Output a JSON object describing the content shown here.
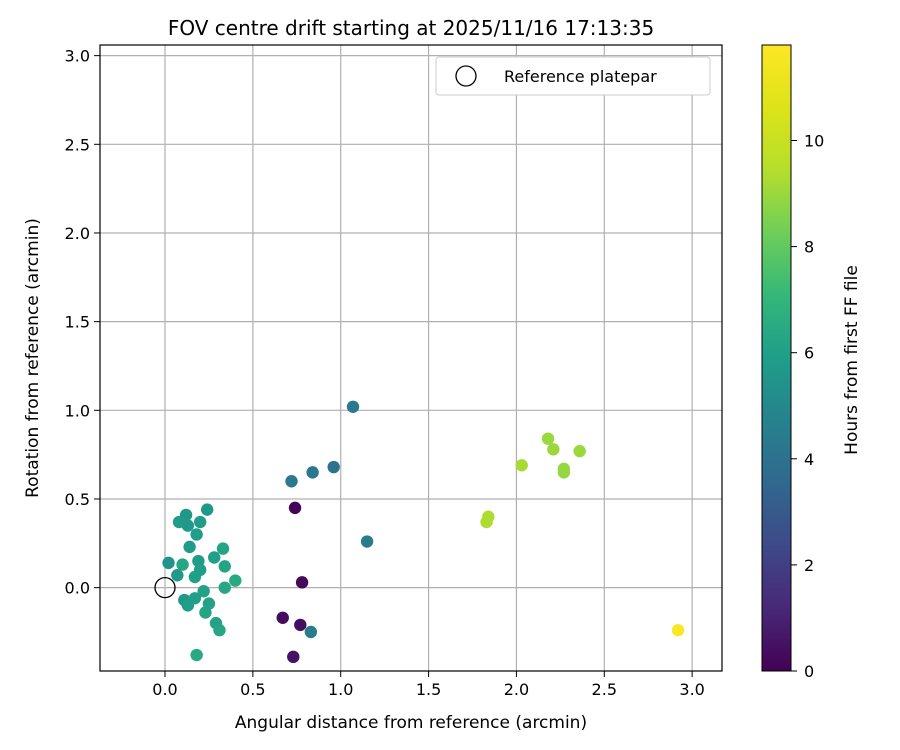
{
  "chart_data": {
    "type": "scatter",
    "title": "FOV centre drift starting at 2025/11/16 17:13:35",
    "xlabel": "Angular distance from reference (arcmin)",
    "ylabel": "Rotation from reference (arcmin)",
    "xlim": [
      -0.37,
      3.17
    ],
    "ylim": [
      -0.47,
      3.06
    ],
    "xticks": [
      0.0,
      0.5,
      1.0,
      1.5,
      2.0,
      2.5,
      3.0
    ],
    "xtick_labels": [
      "0.0",
      "0.5",
      "1.0",
      "1.5",
      "2.0",
      "2.5",
      "3.0"
    ],
    "yticks": [
      0.0,
      0.5,
      1.0,
      1.5,
      2.0,
      2.5,
      3.0
    ],
    "ytick_labels": [
      "0.0",
      "0.5",
      "1.0",
      "1.5",
      "2.0",
      "2.5",
      "3.0"
    ],
    "grid": true,
    "legend": {
      "position": "top-right",
      "entries": [
        "Reference platepar"
      ]
    },
    "reference_point": {
      "x": 0.0,
      "y": 0.0,
      "label": "Reference platepar"
    },
    "colorbar": {
      "label": "Hours from first FF file",
      "colormap": "viridis",
      "range": [
        0,
        11.8
      ],
      "ticks": [
        0,
        2,
        4,
        6,
        8,
        10
      ],
      "tick_labels": [
        "0",
        "2",
        "4",
        "6",
        "8",
        "10"
      ]
    },
    "points": [
      {
        "x": 0.74,
        "y": 0.45,
        "c": 0.1
      },
      {
        "x": 0.78,
        "y": 0.03,
        "c": 0.2
      },
      {
        "x": 0.67,
        "y": -0.17,
        "c": 0.3
      },
      {
        "x": 0.77,
        "y": -0.21,
        "c": 0.4
      },
      {
        "x": 0.73,
        "y": -0.39,
        "c": 0.5
      },
      {
        "x": 0.72,
        "y": 0.6,
        "c": 4.3
      },
      {
        "x": 0.84,
        "y": 0.65,
        "c": 4.2
      },
      {
        "x": 0.96,
        "y": 0.68,
        "c": 4.1
      },
      {
        "x": 1.07,
        "y": 1.02,
        "c": 4.3
      },
      {
        "x": 1.15,
        "y": 0.26,
        "c": 4.4
      },
      {
        "x": 0.83,
        "y": -0.25,
        "c": 4.4
      },
      {
        "x": 0.02,
        "y": 0.14,
        "c": 5.5
      },
      {
        "x": 0.07,
        "y": 0.07,
        "c": 5.7
      },
      {
        "x": 0.08,
        "y": 0.37,
        "c": 5.8
      },
      {
        "x": 0.1,
        "y": 0.13,
        "c": 6.3
      },
      {
        "x": 0.12,
        "y": 0.41,
        "c": 5.6
      },
      {
        "x": 0.11,
        "y": -0.07,
        "c": 5.6
      },
      {
        "x": 0.13,
        "y": 0.35,
        "c": 5.7
      },
      {
        "x": 0.14,
        "y": 0.23,
        "c": 5.8
      },
      {
        "x": 0.13,
        "y": -0.1,
        "c": 5.9
      },
      {
        "x": 0.17,
        "y": 0.06,
        "c": 6.0
      },
      {
        "x": 0.18,
        "y": 0.3,
        "c": 5.9
      },
      {
        "x": 0.19,
        "y": 0.15,
        "c": 5.8
      },
      {
        "x": 0.2,
        "y": 0.37,
        "c": 5.8
      },
      {
        "x": 0.2,
        "y": 0.1,
        "c": 5.9
      },
      {
        "x": 0.17,
        "y": -0.06,
        "c": 6.0
      },
      {
        "x": 0.22,
        "y": -0.02,
        "c": 6.1
      },
      {
        "x": 0.23,
        "y": -0.14,
        "c": 6.2
      },
      {
        "x": 0.24,
        "y": 0.44,
        "c": 5.7
      },
      {
        "x": 0.25,
        "y": -0.09,
        "c": 6.1
      },
      {
        "x": 0.28,
        "y": 0.17,
        "c": 6.0
      },
      {
        "x": 0.29,
        "y": -0.2,
        "c": 6.1
      },
      {
        "x": 0.31,
        "y": -0.24,
        "c": 6.3
      },
      {
        "x": 0.33,
        "y": 0.22,
        "c": 6.2
      },
      {
        "x": 0.34,
        "y": 0.12,
        "c": 6.2
      },
      {
        "x": 0.34,
        "y": 0.0,
        "c": 6.3
      },
      {
        "x": 0.4,
        "y": 0.04,
        "c": 6.4
      },
      {
        "x": 0.18,
        "y": -0.38,
        "c": 6.4
      },
      {
        "x": 1.83,
        "y": 0.37,
        "c": 9.3
      },
      {
        "x": 1.84,
        "y": 0.4,
        "c": 9.3
      },
      {
        "x": 2.03,
        "y": 0.69,
        "c": 9.2
      },
      {
        "x": 2.18,
        "y": 0.84,
        "c": 9.0
      },
      {
        "x": 2.21,
        "y": 0.78,
        "c": 9.0
      },
      {
        "x": 2.27,
        "y": 0.67,
        "c": 8.9
      },
      {
        "x": 2.27,
        "y": 0.65,
        "c": 8.9
      },
      {
        "x": 2.36,
        "y": 0.77,
        "c": 9.0
      },
      {
        "x": 2.92,
        "y": -0.24,
        "c": 11.7
      }
    ]
  }
}
